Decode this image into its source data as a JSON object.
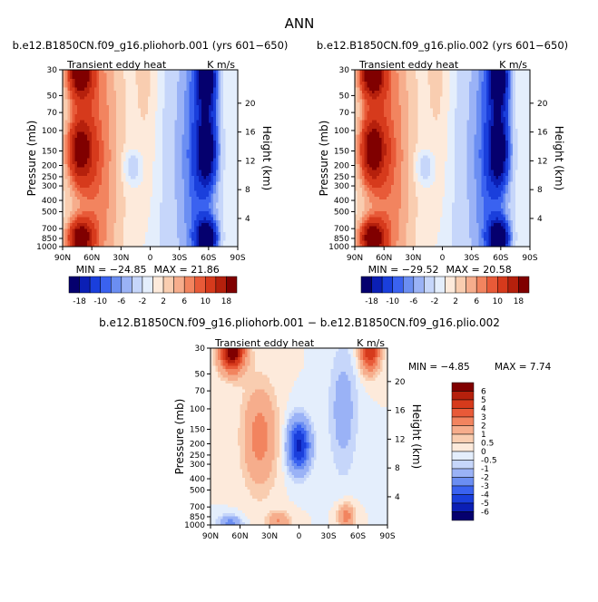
{
  "figure": {
    "title": "ANN",
    "diff_title": "b.e12.B1850CN.f09_g16.pliohorb.001 − b.e12.B1850CN.f09_g16.plio.002"
  },
  "colors": {
    "main_scale": [
      "#05006e",
      "#0b1fb5",
      "#1a3fdc",
      "#3a62f0",
      "#6b8ef2",
      "#9ab2f6",
      "#c6d6fa",
      "#e4eefc",
      "#fdeadb",
      "#f9cdb0",
      "#f6ad8c",
      "#f2845f",
      "#e85a38",
      "#d63a1c",
      "#b5200c",
      "#800000"
    ],
    "diff_scale": [
      "#05006e",
      "#0b1fb5",
      "#1a3fdc",
      "#3a62f0",
      "#6b8ef2",
      "#9ab2f6",
      "#c6d6fa",
      "#e4eefc",
      "#fdeadb",
      "#f9cdb0",
      "#f6ad8c",
      "#f2845f",
      "#e85a38",
      "#d63a1c",
      "#b5200c",
      "#800000"
    ]
  },
  "main_colorbar_labels": [
    "-18",
    "-10",
    "-6",
    "-2",
    "2",
    "6",
    "10",
    "18"
  ],
  "diff_colorbar_labels": [
    "6",
    "5",
    "4",
    "3",
    "2",
    "1",
    "0.5",
    "0",
    "-0.5",
    "-1",
    "-2",
    "-3",
    "-4",
    "-5",
    "-6"
  ],
  "chart_data": [
    {
      "type": "heatmap",
      "title": "b.e12.B1850CN.f09_g16.pliohorb.001 (yrs 601−650)",
      "variable": "Transient eddy heat",
      "units": "K m/s",
      "ylabel": "Pressure (mb)",
      "ylabel_right": "Height (km)",
      "x_ticks": [
        "90N",
        "60N",
        "30N",
        "0",
        "30S",
        "60S",
        "90S"
      ],
      "y_ticks": [
        "30",
        "50",
        "70",
        "100",
        "150",
        "200",
        "250",
        "300",
        "400",
        "500",
        "700",
        "850",
        "1000"
      ],
      "y_ticks_right": [
        "20",
        "16",
        "12",
        "8",
        "4"
      ],
      "min_label": "MIN = −24.85",
      "max_label": "MAX = 21.86",
      "min": -24.85,
      "max": 21.86
    },
    {
      "type": "heatmap",
      "title": "b.e12.B1850CN.f09_g16.plio.002 (yrs 601−650)",
      "variable": "Transient eddy heat",
      "units": "K m/s",
      "ylabel": "Pressure (mb)",
      "ylabel_right": "Height (km)",
      "x_ticks": [
        "90N",
        "60N",
        "30N",
        "0",
        "30S",
        "60S",
        "90S"
      ],
      "y_ticks": [
        "30",
        "50",
        "70",
        "100",
        "150",
        "200",
        "250",
        "300",
        "400",
        "500",
        "700",
        "850",
        "1000"
      ],
      "y_ticks_right": [
        "20",
        "16",
        "12",
        "8",
        "4"
      ],
      "min_label": "MIN = −29.52",
      "max_label": "MAX = 20.58",
      "min": -29.52,
      "max": 20.58
    },
    {
      "type": "heatmap",
      "title": "b.e12.B1850CN.f09_g16.pliohorb.001 − b.e12.B1850CN.f09_g16.plio.002",
      "variable": "Transient eddy heat",
      "units": "K m/s",
      "ylabel": "Pressure (mb)",
      "ylabel_right": "Height (km)",
      "x_ticks": [
        "90N",
        "60N",
        "30N",
        "0",
        "30S",
        "60S",
        "90S"
      ],
      "y_ticks": [
        "30",
        "50",
        "70",
        "100",
        "150",
        "200",
        "250",
        "300",
        "400",
        "500",
        "700",
        "850",
        "1000"
      ],
      "y_ticks_right": [
        "20",
        "16",
        "12",
        "8",
        "4"
      ],
      "min_label": "MIN = −4.85",
      "max_label": "MAX = 7.74",
      "min": -4.85,
      "max": 7.74
    }
  ]
}
